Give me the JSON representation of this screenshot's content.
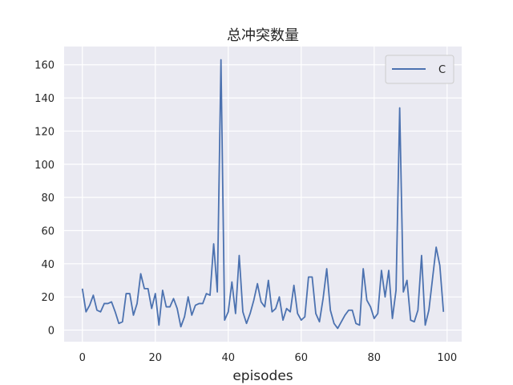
{
  "chart_data": {
    "type": "line",
    "title": "总冲突数量",
    "xlabel": "episodes",
    "ylabel": "",
    "xlim": [
      -5,
      104
    ],
    "ylim": [
      -7,
      171
    ],
    "x_ticks": [
      0,
      20,
      40,
      60,
      80,
      100
    ],
    "x_tick_labels": [
      "0",
      "20",
      "40",
      "60",
      "80",
      "100"
    ],
    "y_ticks": [
      0,
      20,
      40,
      60,
      80,
      100,
      120,
      140,
      160
    ],
    "y_tick_labels": [
      "0",
      "20",
      "40",
      "60",
      "80",
      "100",
      "120",
      "140",
      "160"
    ],
    "grid": true,
    "legend_position": "upper-right",
    "series": [
      {
        "name": "C",
        "color": "#4c72b0",
        "x": [
          0,
          1,
          2,
          3,
          4,
          5,
          6,
          7,
          8,
          9,
          10,
          11,
          12,
          13,
          14,
          15,
          16,
          17,
          18,
          19,
          20,
          21,
          22,
          23,
          24,
          25,
          26,
          27,
          28,
          29,
          30,
          31,
          32,
          33,
          34,
          35,
          36,
          37,
          38,
          39,
          40,
          41,
          42,
          43,
          44,
          45,
          46,
          47,
          48,
          49,
          50,
          51,
          52,
          53,
          54,
          55,
          56,
          57,
          58,
          59,
          60,
          61,
          62,
          63,
          64,
          65,
          66,
          67,
          68,
          69,
          70,
          71,
          72,
          73,
          74,
          75,
          76,
          77,
          78,
          79,
          80,
          81,
          82,
          83,
          84,
          85,
          86,
          87,
          88,
          89,
          90,
          91,
          92,
          93,
          94,
          95,
          96,
          97,
          98,
          99
        ],
        "values": [
          25,
          11,
          15,
          21,
          12,
          11,
          16,
          16,
          17,
          11,
          4,
          5,
          22,
          22,
          9,
          16,
          34,
          25,
          25,
          13,
          22,
          3,
          24,
          14,
          14,
          19,
          13,
          2,
          8,
          20,
          9,
          15,
          16,
          16,
          22,
          21,
          52,
          23,
          163,
          6,
          11,
          29,
          10,
          45,
          11,
          4,
          10,
          18,
          28,
          17,
          14,
          30,
          11,
          13,
          20,
          6,
          13,
          11,
          27,
          10,
          6,
          8,
          32,
          32,
          10,
          5,
          19,
          37,
          12,
          4,
          1,
          5,
          9,
          12,
          12,
          4,
          3,
          37,
          18,
          14,
          7,
          10,
          36,
          20,
          36,
          7,
          24,
          134,
          23,
          30,
          6,
          5,
          12,
          45,
          3,
          12,
          31,
          50,
          39,
          11
        ]
      }
    ]
  }
}
